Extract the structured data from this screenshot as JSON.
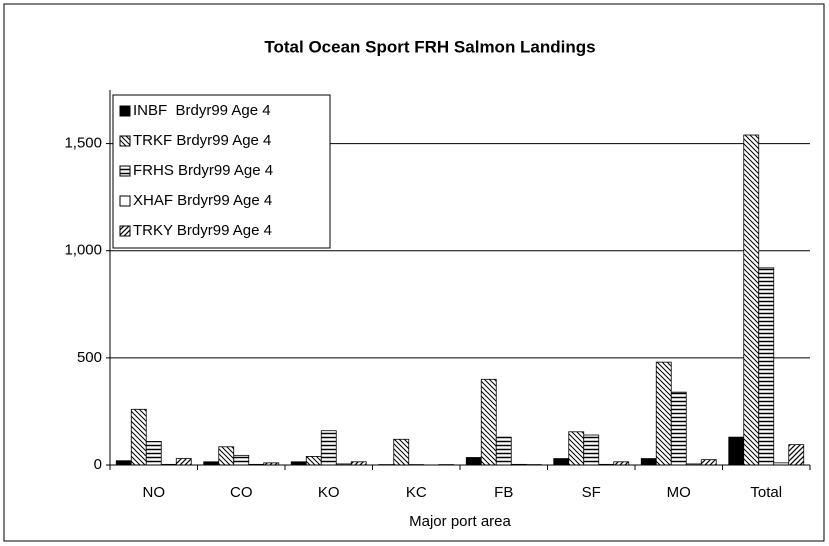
{
  "chart_data": {
    "type": "bar",
    "title": "Total Ocean Sport FRH Salmon Landings",
    "x_label": "Major port area",
    "categories": [
      "NO",
      "CO",
      "KO",
      "KC",
      "FB",
      "SF",
      "MO",
      "Total"
    ],
    "series": [
      {
        "name": "INBF  Brdyr99 Age 4",
        "color": "#000000",
        "pattern": "solid",
        "values": [
          20,
          15,
          15,
          2,
          35,
          30,
          30,
          130
        ]
      },
      {
        "name": "TRKF Brdyr99 Age 4",
        "color": "#000000",
        "pattern": "diag-down",
        "values": [
          260,
          85,
          40,
          120,
          400,
          155,
          480,
          1540
        ]
      },
      {
        "name": "FRHS Brdyr99 Age 4",
        "color": "#000000",
        "pattern": "horizontal",
        "values": [
          110,
          45,
          160,
          2,
          130,
          140,
          340,
          920
        ]
      },
      {
        "name": "XHAF Brdyr99 Age 4",
        "color": "#000000",
        "pattern": "none",
        "values": [
          3,
          3,
          5,
          0,
          3,
          3,
          5,
          10
        ]
      },
      {
        "name": "TRKY Brdyr99 Age 4",
        "color": "#000000",
        "pattern": "diag-up",
        "values": [
          30,
          10,
          15,
          2,
          2,
          15,
          25,
          95
        ]
      }
    ],
    "ylim": [
      0,
      1750
    ],
    "yticks": [
      0,
      {
        "value": 500,
        "label": "500"
      },
      {
        "value": 1000,
        "label": "1,000"
      },
      {
        "value": 1500,
        "label": "1,500"
      }
    ],
    "grid": true,
    "legend": "top-left"
  }
}
